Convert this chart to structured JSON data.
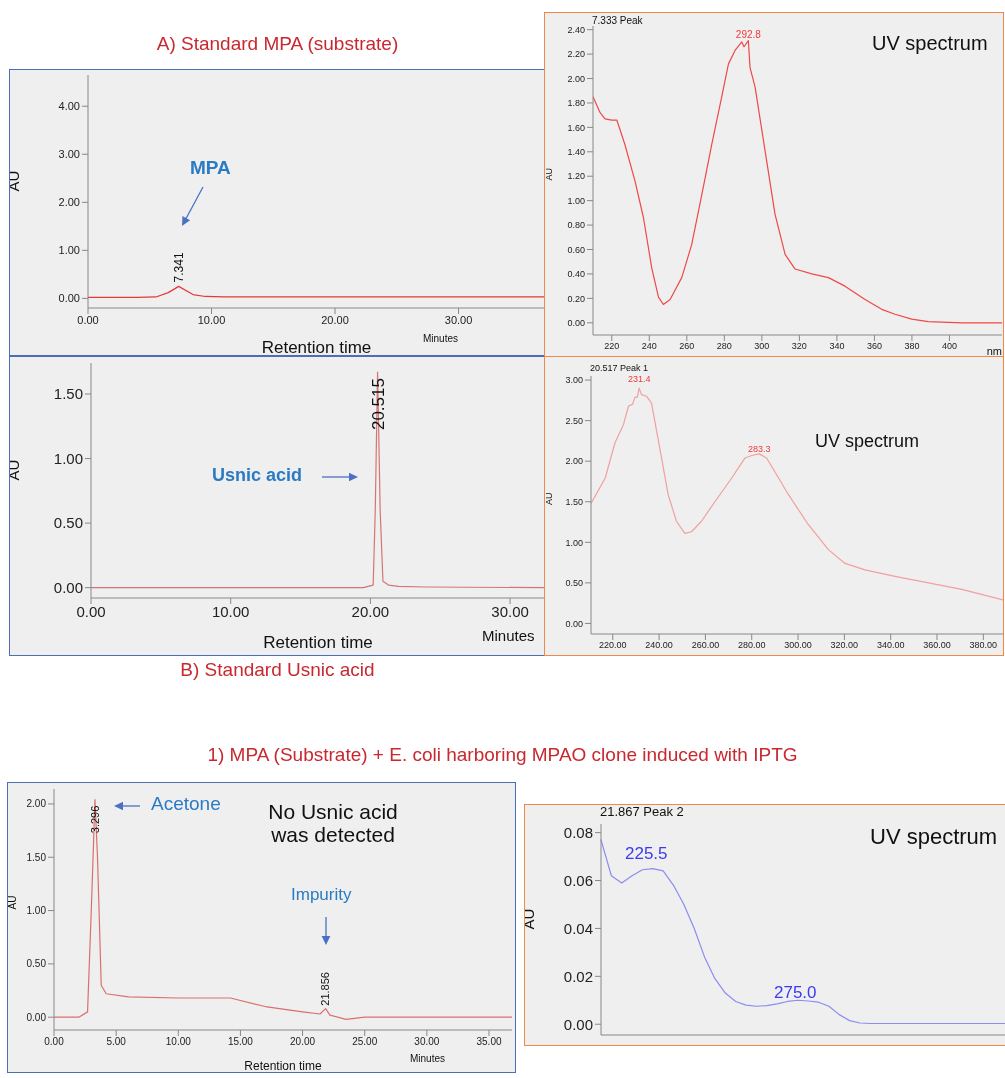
{
  "chart_data": [
    {
      "type": "line",
      "title": "A) Standard MPA (substrate)",
      "xlabel": "Retention time",
      "ylabel": "AU",
      "xlim": [
        0,
        37
      ],
      "ylim": [
        -0.2,
        4.65
      ],
      "xticks": [
        {
          "value": 0,
          "label": "0.00"
        },
        {
          "value": 10,
          "label": "10.00"
        },
        {
          "value": 20,
          "label": "20.00"
        },
        {
          "value": 30,
          "label": "30.00"
        }
      ],
      "yticks": [
        {
          "value": 0,
          "label": "0.00"
        },
        {
          "value": 1,
          "label": "1.00"
        },
        {
          "value": 2,
          "label": "2.00"
        },
        {
          "value": 3,
          "label": "3.00"
        },
        {
          "value": 4,
          "label": "4.00"
        }
      ],
      "series": [
        {
          "color": "#e53935",
          "x": [
            0,
            4,
            5.5,
            6.5,
            7.341,
            8.5,
            9.5,
            11,
            15,
            20,
            25,
            30,
            37
          ],
          "values": [
            0.02,
            0.02,
            0.03,
            0.12,
            0.25,
            0.08,
            0.04,
            0.03,
            0.03,
            0.03,
            0.03,
            0.03,
            0.03
          ]
        }
      ],
      "annotations": [
        {
          "text": "7.341",
          "x": 7.341,
          "y": 0.25
        },
        "MPA",
        "Minutes"
      ]
    },
    {
      "type": "line",
      "title": "7.333 Peak",
      "xlabel": "nm",
      "ylabel": "AU",
      "xlim": [
        210,
        428
      ],
      "ylim": [
        -0.1,
        2.43
      ],
      "xticks": [
        220,
        240,
        260,
        280,
        300,
        320,
        340,
        360,
        380,
        400
      ],
      "yticks": [
        {
          "value": 0,
          "label": "0.00"
        },
        {
          "value": 0.2,
          "label": "0.20"
        },
        {
          "value": 0.4,
          "label": "0.40"
        },
        {
          "value": 0.6,
          "label": "0.60"
        },
        {
          "value": 0.8,
          "label": "0.80"
        },
        {
          "value": 1,
          "label": "1.00"
        },
        {
          "value": 1.2,
          "label": "1.20"
        },
        {
          "value": 1.4,
          "label": "1.40"
        },
        {
          "value": 1.6,
          "label": "1.60"
        },
        {
          "value": 1.8,
          "label": "1.80"
        },
        {
          "value": 2,
          "label": "2.00"
        },
        {
          "value": 2.2,
          "label": "2.20"
        },
        {
          "value": 2.4,
          "label": "2.40"
        }
      ],
      "series": [
        {
          "color": "#f04848",
          "x": [
            210,
            213.8,
            216.4,
            220,
            222.7,
            227,
            232.4,
            236.9,
            241.3,
            244.9,
            247.5,
            251.1,
            257.3,
            262.6,
            268,
            273.3,
            278.6,
            282.2,
            285.7,
            289.3,
            290.5,
            292.8,
            293.7,
            296.4,
            301.7,
            307,
            312.4,
            317.7,
            326.6,
            335.5,
            344.3,
            355,
            363.9,
            371,
            379.9,
            388.7,
            406.5,
            428
          ],
          "values": [
            1.85,
            1.72,
            1.67,
            1.66,
            1.66,
            1.46,
            1.16,
            0.86,
            0.45,
            0.21,
            0.15,
            0.19,
            0.37,
            0.64,
            1.05,
            1.46,
            1.85,
            2.12,
            2.23,
            2.3,
            2.26,
            2.31,
            2.09,
            1.93,
            1.41,
            0.89,
            0.56,
            0.44,
            0.4,
            0.37,
            0.3,
            0.19,
            0.11,
            0.07,
            0.03,
            0.01,
            0,
            0
          ]
        }
      ],
      "annotations": [
        {
          "text": "292.8",
          "x": 292.8,
          "y": 2.31
        },
        "UV spectrum"
      ]
    },
    {
      "type": "line",
      "xlabel": "Retention time",
      "ylabel": "AU",
      "xlim": [
        0,
        32.5
      ],
      "ylim": [
        -0.08,
        1.74
      ],
      "xticks": [
        {
          "value": 0,
          "label": "0.00"
        },
        {
          "value": 10,
          "label": "10.00"
        },
        {
          "value": 20,
          "label": "20.00"
        },
        {
          "value": 30,
          "label": "30.00"
        }
      ],
      "yticks": [
        {
          "value": 0,
          "label": "0.00"
        },
        {
          "value": 0.5,
          "label": "0.50"
        },
        {
          "value": 1,
          "label": "1.00"
        },
        {
          "value": 1.5,
          "label": "1.50"
        }
      ],
      "series": [
        {
          "color": "#d47575",
          "x": [
            0,
            19.5,
            20.2,
            20.35,
            20.515,
            20.7,
            20.9,
            21.3,
            22,
            24,
            32.5
          ],
          "values": [
            0,
            0,
            0.02,
            0.6,
            1.67,
            0.6,
            0.05,
            0.02,
            0.01,
            0.005,
            0
          ]
        }
      ],
      "annotations": [
        {
          "text": "20.515",
          "x": 20.515,
          "y": 1.67
        },
        "Usnic acid",
        "Minutes",
        "B) Standard Usnic acid"
      ]
    },
    {
      "type": "line",
      "title": "20.517 Peak 1",
      "ylabel": "AU",
      "xlim": [
        210.6,
        388.5
      ],
      "ylim": [
        -0.13,
        3.05
      ],
      "xticks": [
        {
          "value": 220,
          "label": "220.00"
        },
        {
          "value": 240,
          "label": "240.00"
        },
        {
          "value": 260,
          "label": "260.00"
        },
        {
          "value": 280,
          "label": "280.00"
        },
        {
          "value": 300,
          "label": "300.00"
        },
        {
          "value": 320,
          "label": "320.00"
        },
        {
          "value": 340,
          "label": "340.00"
        },
        {
          "value": 360,
          "label": "360.00"
        },
        {
          "value": 380,
          "label": "380.00"
        }
      ],
      "yticks": [
        {
          "value": 0,
          "label": "0.00"
        },
        {
          "value": 0.5,
          "label": "0.50"
        },
        {
          "value": 1,
          "label": "1.00"
        },
        {
          "value": 1.5,
          "label": "1.50"
        },
        {
          "value": 2,
          "label": "2.00"
        },
        {
          "value": 2.5,
          "label": "2.50"
        },
        {
          "value": 3,
          "label": "3.00"
        }
      ],
      "series": [
        {
          "color": "#f0a0a0",
          "x": [
            210.6,
            216.7,
            221,
            224.6,
            226.8,
            228.5,
            229.6,
            230.6,
            231.4,
            232.4,
            234.6,
            236.7,
            240.3,
            243.9,
            247.5,
            251.1,
            254,
            258.3,
            264.1,
            271.3,
            277.1,
            280,
            283.3,
            286.4,
            290,
            295.8,
            304.4,
            313.1,
            320.3,
            328.9,
            341.9,
            356.3,
            370.7,
            388.5
          ],
          "values": [
            1.48,
            1.79,
            2.23,
            2.45,
            2.68,
            2.7,
            2.79,
            2.79,
            2.9,
            2.82,
            2.8,
            2.72,
            2.16,
            1.59,
            1.26,
            1.11,
            1.13,
            1.26,
            1.5,
            1.79,
            2.04,
            2.07,
            2.09,
            2.04,
            1.87,
            1.59,
            1.22,
            0.91,
            0.74,
            0.66,
            0.58,
            0.5,
            0.42,
            0.29
          ]
        }
      ],
      "annotations": [
        {
          "text": "231.4",
          "x": 231.4,
          "y": 2.9
        },
        {
          "text": "283.3",
          "x": 283.3,
          "y": 2.09
        },
        "UV spectrum"
      ]
    },
    {
      "type": "line",
      "title": "1) MPA (Substrate) + E. coli harboring MPAO clone induced with IPTG",
      "xlabel": "Retention time",
      "ylabel": "AU",
      "xlim": [
        0,
        36.85
      ],
      "ylim": [
        -0.12,
        2.14
      ],
      "xticks": [
        {
          "value": 0,
          "label": "0.00"
        },
        {
          "value": 5,
          "label": "5.00"
        },
        {
          "value": 10,
          "label": "10.00"
        },
        {
          "value": 15,
          "label": "15.00"
        },
        {
          "value": 20,
          "label": "20.00"
        },
        {
          "value": 25,
          "label": "25.00"
        },
        {
          "value": 30,
          "label": "30.00"
        },
        {
          "value": 35,
          "label": "35.00"
        }
      ],
      "yticks": [
        {
          "value": 0,
          "label": "0.00"
        },
        {
          "value": 0.5,
          "label": "0.50"
        },
        {
          "value": 1,
          "label": "1.00"
        },
        {
          "value": 1.5,
          "label": "1.50"
        },
        {
          "value": 2,
          "label": "2.00"
        }
      ],
      "series": [
        {
          "color": "#d97070",
          "x": [
            0,
            2,
            2.7,
            3,
            3.296,
            3.5,
            3.8,
            4.2,
            6,
            10,
            14.2,
            17,
            20,
            21.4,
            21.856,
            22.2,
            23.5,
            25,
            36.85
          ],
          "values": [
            0,
            0,
            0.05,
            1,
            2.04,
            1.5,
            0.3,
            0.22,
            0.19,
            0.18,
            0.18,
            0.1,
            0.05,
            0.03,
            0.08,
            0.02,
            -0.02,
            0,
            0
          ]
        }
      ],
      "annotations": [
        {
          "text": "3.296",
          "x": 3.296,
          "y": 2.04
        },
        {
          "text": "21.856",
          "x": 21.856,
          "y": 0.08
        },
        "Acetone",
        "No Usnic acid was detected",
        "Impurity",
        "Minutes"
      ]
    },
    {
      "type": "line",
      "title": "21.867 Peak 2",
      "ylabel": "AU",
      "ylim": [
        -0.0045,
        0.0836
      ],
      "tick_labels": "y",
      "categories": [
        null,
        null,
        null,
        null,
        null,
        null,
        null,
        null,
        null,
        null,
        null,
        null,
        null,
        null,
        null,
        null,
        null,
        null,
        null,
        null,
        null,
        null,
        null,
        null,
        null,
        null,
        null,
        null,
        null,
        null,
        null,
        null,
        null,
        null,
        null,
        null,
        null,
        null,
        null,
        null
      ],
      "yticks": [
        {
          "value": 0,
          "label": "0.00"
        },
        {
          "value": 0.02,
          "label": "0.02"
        },
        {
          "value": 0.04,
          "label": "0.04"
        },
        {
          "value": 0.06,
          "label": "0.06"
        },
        {
          "value": 0.08,
          "label": "0.08"
        }
      ],
      "series": [
        {
          "color": "#8c8cf0",
          "values": [
            0.077,
            0.062,
            0.059,
            0.062,
            0.0645,
            0.065,
            0.064,
            0.058,
            0.05,
            0.04,
            0.028,
            0.019,
            0.013,
            0.0095,
            0.008,
            0.0075,
            0.0078,
            0.0085,
            0.0095,
            0.01,
            0.0097,
            0.0092,
            0.0075,
            0.004,
            0.0015,
            0.0005,
            0.0003,
            0.0003,
            0.0003,
            0.0003,
            0.0003,
            0.0003,
            0.0003,
            0.0003,
            0.0003,
            0.0003,
            0.0003,
            0.0003,
            0.0003,
            0.0003
          ]
        }
      ],
      "annotations": [
        "225.5",
        "275.0",
        "UV spectrum"
      ]
    }
  ]
}
